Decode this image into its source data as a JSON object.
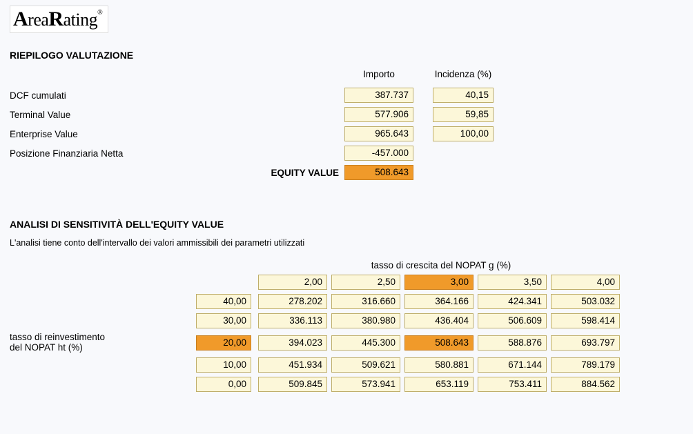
{
  "brand": {
    "name": "AreaRating",
    "mark": "®"
  },
  "colors": {
    "cell_bg": "#fcf7d9",
    "cell_border": "#bfae6a",
    "highlight_bg": "#f09a2a",
    "highlight_border": "#c97e1d",
    "page_bg": "#f8f9fc"
  },
  "riepilogo": {
    "title": "RIEPILOGO VALUTAZIONE",
    "headers": {
      "importo": "Importo",
      "incidenza": "Incidenza (%)"
    },
    "rows": [
      {
        "label": "DCF cumulati",
        "importo": "387.737",
        "incidenza": "40,15"
      },
      {
        "label": "Terminal Value",
        "importo": "577.906",
        "incidenza": "59,85"
      },
      {
        "label": "Enterprise Value",
        "importo": "965.643",
        "incidenza": "100,00"
      },
      {
        "label": "Posizione Finanziaria Netta",
        "importo": "-457.000",
        "incidenza": null
      }
    ],
    "equity": {
      "label": "EQUITY VALUE",
      "value": "508.643"
    }
  },
  "sensitivity": {
    "title": "ANALISI DI SENSITIVITÀ DELL'EQUITY VALUE",
    "subtitle": "L'analisi tiene conto dell'intervallo dei valori ammissibili dei parametri utilizzati",
    "col_axis_label": "tasso di crescita del NOPAT g (%)",
    "row_axis_label_1": "tasso di reinvestimento",
    "row_axis_label_2": "del NOPAT ht (%)",
    "col_hdr": [
      "2,00",
      "2,50",
      "3,00",
      "3,50",
      "4,00"
    ],
    "col_hdr_highlight_index": 2,
    "row_hdr": [
      "40,00",
      "30,00",
      "20,00",
      "10,00",
      "0,00"
    ],
    "row_hdr_highlight_index": 2,
    "data": [
      [
        "278.202",
        "316.660",
        "364.166",
        "424.341",
        "503.032"
      ],
      [
        "336.113",
        "380.980",
        "436.404",
        "506.609",
        "598.414"
      ],
      [
        "394.023",
        "445.300",
        "508.643",
        "588.876",
        "693.797"
      ],
      [
        "451.934",
        "509.621",
        "580.881",
        "671.144",
        "789.179"
      ],
      [
        "509.845",
        "573.941",
        "653.119",
        "753.411",
        "884.562"
      ]
    ],
    "data_highlight": [
      2,
      2
    ]
  }
}
